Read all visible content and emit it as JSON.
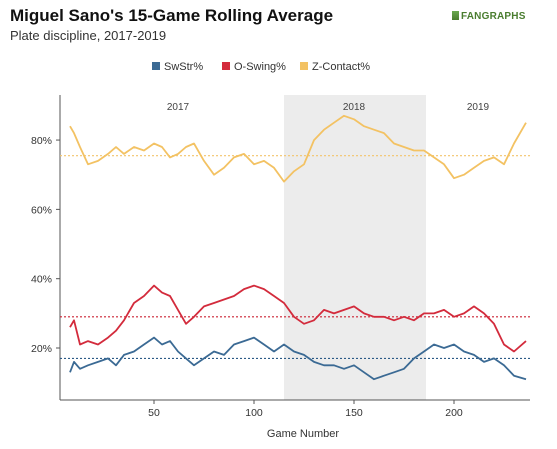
{
  "header": {
    "title": "Miguel Sano's 15-Game Rolling Average",
    "subtitle": "Plate discipline, 2017-2019",
    "logo_text": "FANGRAPHS"
  },
  "chart_data": {
    "type": "line",
    "title": "Miguel Sano's 15-Game Rolling Average",
    "subtitle": "Plate discipline, 2017-2019",
    "xlabel": "Game Number",
    "ylabel": "",
    "xlim": [
      3,
      238
    ],
    "ylim": [
      5,
      93
    ],
    "x_ticks": [
      50,
      100,
      150,
      200
    ],
    "y_ticks": [
      20,
      40,
      60,
      80
    ],
    "y_tick_labels": [
      "20%",
      "40%",
      "60%",
      "80%"
    ],
    "grid": false,
    "legend_position": "top-center",
    "season_bands": [
      {
        "label": "2017",
        "x_start": 3,
        "x_end": 115,
        "shaded": false,
        "label_x": 62
      },
      {
        "label": "2018",
        "x_start": 115,
        "x_end": 186,
        "shaded": true,
        "label_x": 150
      },
      {
        "label": "2019",
        "x_start": 186,
        "x_end": 238,
        "shaded": false,
        "label_x": 212
      }
    ],
    "reference_lines": [
      {
        "series": "Z-Contact%",
        "value": 75.5,
        "color": "#f2c46b"
      },
      {
        "series": "O-Swing%",
        "value": 29,
        "color": "#cc2233"
      },
      {
        "series": "SwStr%",
        "value": 17,
        "color": "#2b5a86"
      }
    ],
    "series": [
      {
        "name": "SwStr%",
        "color": "#3b6a94",
        "points": [
          [
            8,
            13
          ],
          [
            10,
            16
          ],
          [
            13,
            14
          ],
          [
            17,
            15
          ],
          [
            22,
            16
          ],
          [
            27,
            17
          ],
          [
            31,
            15
          ],
          [
            35,
            18
          ],
          [
            40,
            19
          ],
          [
            45,
            21
          ],
          [
            50,
            23
          ],
          [
            54,
            21
          ],
          [
            58,
            22
          ],
          [
            62,
            19
          ],
          [
            66,
            17
          ],
          [
            70,
            15
          ],
          [
            75,
            17
          ],
          [
            80,
            19
          ],
          [
            85,
            18
          ],
          [
            90,
            21
          ],
          [
            95,
            22
          ],
          [
            100,
            23
          ],
          [
            105,
            21
          ],
          [
            110,
            19
          ],
          [
            115,
            21
          ],
          [
            120,
            19
          ],
          [
            125,
            18
          ],
          [
            130,
            16
          ],
          [
            135,
            15
          ],
          [
            140,
            15
          ],
          [
            145,
            14
          ],
          [
            150,
            15
          ],
          [
            155,
            13
          ],
          [
            160,
            11
          ],
          [
            165,
            12
          ],
          [
            170,
            13
          ],
          [
            175,
            14
          ],
          [
            180,
            17
          ],
          [
            185,
            19
          ],
          [
            190,
            21
          ],
          [
            195,
            20
          ],
          [
            200,
            21
          ],
          [
            205,
            19
          ],
          [
            210,
            18
          ],
          [
            215,
            16
          ],
          [
            220,
            17
          ],
          [
            225,
            15
          ],
          [
            230,
            12
          ],
          [
            236,
            11
          ]
        ]
      },
      {
        "name": "O-Swing%",
        "color": "#d32b3c",
        "points": [
          [
            8,
            26
          ],
          [
            10,
            28
          ],
          [
            13,
            21
          ],
          [
            17,
            22
          ],
          [
            22,
            21
          ],
          [
            27,
            23
          ],
          [
            31,
            25
          ],
          [
            35,
            28
          ],
          [
            40,
            33
          ],
          [
            45,
            35
          ],
          [
            50,
            38
          ],
          [
            54,
            36
          ],
          [
            58,
            35
          ],
          [
            62,
            31
          ],
          [
            66,
            27
          ],
          [
            70,
            29
          ],
          [
            75,
            32
          ],
          [
            80,
            33
          ],
          [
            85,
            34
          ],
          [
            90,
            35
          ],
          [
            95,
            37
          ],
          [
            100,
            38
          ],
          [
            105,
            37
          ],
          [
            110,
            35
          ],
          [
            115,
            33
          ],
          [
            120,
            29
          ],
          [
            125,
            27
          ],
          [
            130,
            28
          ],
          [
            135,
            31
          ],
          [
            140,
            30
          ],
          [
            145,
            31
          ],
          [
            150,
            32
          ],
          [
            155,
            30
          ],
          [
            160,
            29
          ],
          [
            165,
            29
          ],
          [
            170,
            28
          ],
          [
            175,
            29
          ],
          [
            180,
            28
          ],
          [
            185,
            30
          ],
          [
            190,
            30
          ],
          [
            195,
            31
          ],
          [
            200,
            29
          ],
          [
            205,
            30
          ],
          [
            210,
            32
          ],
          [
            215,
            30
          ],
          [
            220,
            27
          ],
          [
            225,
            21
          ],
          [
            230,
            19
          ],
          [
            236,
            22
          ]
        ]
      },
      {
        "name": "Z-Contact%",
        "color": "#f3c263",
        "points": [
          [
            8,
            84
          ],
          [
            10,
            82
          ],
          [
            13,
            78
          ],
          [
            17,
            73
          ],
          [
            22,
            74
          ],
          [
            27,
            76
          ],
          [
            31,
            78
          ],
          [
            35,
            76
          ],
          [
            40,
            78
          ],
          [
            45,
            77
          ],
          [
            50,
            79
          ],
          [
            54,
            78
          ],
          [
            58,
            75
          ],
          [
            62,
            76
          ],
          [
            66,
            78
          ],
          [
            70,
            79
          ],
          [
            75,
            74
          ],
          [
            80,
            70
          ],
          [
            85,
            72
          ],
          [
            90,
            75
          ],
          [
            95,
            76
          ],
          [
            100,
            73
          ],
          [
            105,
            74
          ],
          [
            110,
            72
          ],
          [
            115,
            68
          ],
          [
            120,
            71
          ],
          [
            125,
            73
          ],
          [
            130,
            80
          ],
          [
            135,
            83
          ],
          [
            140,
            85
          ],
          [
            145,
            87
          ],
          [
            150,
            86
          ],
          [
            155,
            84
          ],
          [
            160,
            83
          ],
          [
            165,
            82
          ],
          [
            170,
            79
          ],
          [
            175,
            78
          ],
          [
            180,
            77
          ],
          [
            185,
            77
          ],
          [
            190,
            75
          ],
          [
            195,
            73
          ],
          [
            200,
            69
          ],
          [
            205,
            70
          ],
          [
            210,
            72
          ],
          [
            215,
            74
          ],
          [
            220,
            75
          ],
          [
            225,
            73
          ],
          [
            230,
            79
          ],
          [
            236,
            85
          ]
        ]
      }
    ]
  }
}
